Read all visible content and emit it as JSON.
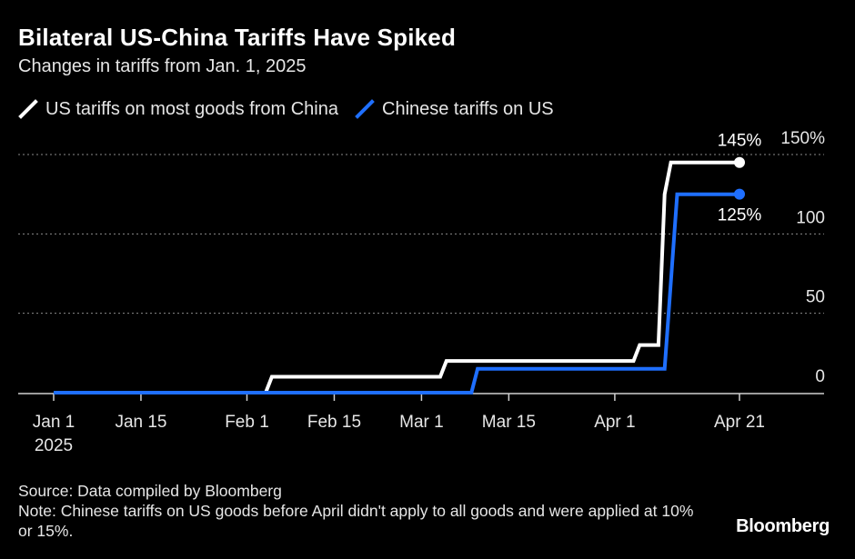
{
  "title": "Bilateral US-China Tariffs Have Spiked",
  "subtitle": "Changes in tariffs from Jan. 1, 2025",
  "source": "Source: Data compiled by Bloomberg",
  "note": "Note: Chinese tariffs on US goods before April didn't apply to all goods and were applied at 10% or 15%.",
  "brand": "Bloomberg",
  "colors": {
    "background": "#000000",
    "us_series": "#ffffff",
    "china_series": "#1f6fff",
    "grid": "#8a8a8a"
  },
  "chart_data": {
    "type": "line",
    "title": "Bilateral US-China Tariffs Have Spiked",
    "subtitle": "Changes in tariffs from Jan. 1, 2025",
    "x_type": "date",
    "x_range": [
      "2025-01-01",
      "2025-04-21"
    ],
    "ylim": [
      0,
      150
    ],
    "y_ticks": [
      0,
      50,
      100,
      150
    ],
    "y_tick_labels": [
      "0",
      "50",
      "100",
      "150%"
    ],
    "x_ticks": [
      {
        "date": "2025-01-01",
        "label": "Jan 1",
        "sublabel": "2025"
      },
      {
        "date": "2025-01-15",
        "label": "Jan 15"
      },
      {
        "date": "2025-02-01",
        "label": "Feb 1"
      },
      {
        "date": "2025-02-15",
        "label": "Feb 15"
      },
      {
        "date": "2025-03-01",
        "label": "Mar 1"
      },
      {
        "date": "2025-03-15",
        "label": "Mar 15"
      },
      {
        "date": "2025-04-01",
        "label": "Apr 1"
      },
      {
        "date": "2025-04-21",
        "label": "Apr 21"
      }
    ],
    "grid": true,
    "legend_position": "top-left",
    "series": [
      {
        "name": "US tariffs on most goods from China",
        "color": "#ffffff",
        "end_label": "145%",
        "points": [
          [
            "2025-01-01",
            0
          ],
          [
            "2025-02-04",
            0
          ],
          [
            "2025-02-05",
            10
          ],
          [
            "2025-03-04",
            10
          ],
          [
            "2025-03-05",
            20
          ],
          [
            "2025-04-04",
            20
          ],
          [
            "2025-04-05",
            30
          ],
          [
            "2025-04-08",
            30
          ],
          [
            "2025-04-09",
            125
          ],
          [
            "2025-04-10",
            145
          ],
          [
            "2025-04-21",
            145
          ]
        ]
      },
      {
        "name": "Chinese tariffs on US",
        "color": "#1f6fff",
        "end_label": "125%",
        "points": [
          [
            "2025-01-01",
            0
          ],
          [
            "2025-03-09",
            0
          ],
          [
            "2025-03-10",
            15
          ],
          [
            "2025-04-09",
            15
          ],
          [
            "2025-04-11",
            125
          ],
          [
            "2025-04-21",
            125
          ]
        ]
      }
    ]
  }
}
